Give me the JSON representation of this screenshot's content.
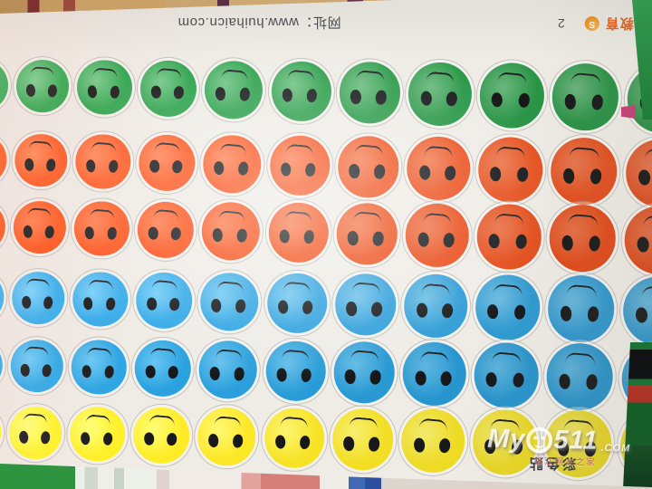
{
  "sheet_header": {
    "website_label": "网址：www.huihaicn.com",
    "brand_name": "慧海教育",
    "logo_letter": "S",
    "page_number": "2"
  },
  "sheet_footer": {
    "label": "彩色贴"
  },
  "watermark": {
    "site_prefix": "My",
    "site_suffix": "511",
    "tld": ".COM",
    "subtitle": "镇江网友之家"
  },
  "sticker_sheet": {
    "rows": [
      {
        "color_name": "green",
        "hex": "#2a9a48",
        "light": "#6fbe83",
        "count": 11
      },
      {
        "color_name": "orange",
        "hex": "#f0521e",
        "light": "#f67e52",
        "count": 11
      },
      {
        "color_name": "orange",
        "hex": "#ee4d18",
        "light": "#f4764a",
        "count": 11
      },
      {
        "color_name": "blue",
        "hex": "#2f9fda",
        "light": "#6fc3ea",
        "count": 11
      },
      {
        "color_name": "blue",
        "hex": "#2899d3",
        "light": "#62bbe5",
        "count": 11
      },
      {
        "color_name": "yellow",
        "hex": "#f2df25",
        "light": "#f8ef70",
        "count": 11
      }
    ],
    "face_style": "upside-down smiley, two black oval eyes with arc mouth above",
    "eye_color": "#17181a",
    "sheet_color": "#efece6"
  }
}
